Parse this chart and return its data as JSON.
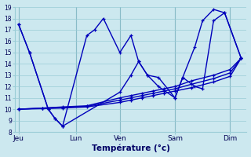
{
  "bg_color": "#cce8ef",
  "grid_color": "#99ccd6",
  "line_color": "#0000bb",
  "xlabel": "Température (°c)",
  "ylim": [
    8,
    19
  ],
  "xlim": [
    0,
    21
  ],
  "yticks": [
    8,
    9,
    10,
    11,
    12,
    13,
    14,
    15,
    16,
    17,
    18,
    19
  ],
  "day_labels": [
    "Jeu",
    "Lun",
    "Ven",
    "Sam",
    "Dim"
  ],
  "day_positions": [
    0.3,
    5.5,
    9.5,
    14.5,
    19.5
  ],
  "vline_positions": [
    0.3,
    5.5,
    9.5,
    14.5,
    19.5
  ],
  "line1_x": [
    0.3,
    1.3,
    3.0,
    3.6,
    4.3,
    6.5,
    7.2,
    8.0,
    9.5,
    10.5,
    11.2,
    12.0,
    13.0,
    14.5,
    15.2,
    16.3,
    17.0,
    18.0,
    19.0,
    20.5
  ],
  "line1_y": [
    17.5,
    15.0,
    10.0,
    9.2,
    8.5,
    16.5,
    17.0,
    18.0,
    15.0,
    16.5,
    14.2,
    13.0,
    12.8,
    11.0,
    12.8,
    15.5,
    17.8,
    18.8,
    18.5,
    14.5
  ],
  "line2_x": [
    0.3,
    1.3,
    3.0,
    3.6,
    4.3,
    9.5,
    10.5,
    11.2,
    12.0,
    13.0,
    14.5,
    15.2,
    16.3,
    17.0,
    18.0,
    19.0,
    20.5
  ],
  "line2_y": [
    17.5,
    15.0,
    10.0,
    9.2,
    8.5,
    11.5,
    13.0,
    14.2,
    13.0,
    12.0,
    11.0,
    12.8,
    12.0,
    11.8,
    17.8,
    18.5,
    14.5
  ],
  "line3_x": [
    0.3,
    2.5,
    4.3,
    6.5,
    9.5,
    10.5,
    11.5,
    12.5,
    13.5,
    14.5,
    16.0,
    18.0,
    19.5,
    20.5
  ],
  "line3_y": [
    10.0,
    10.1,
    10.2,
    10.3,
    11.0,
    11.2,
    11.4,
    11.6,
    11.8,
    12.0,
    12.5,
    13.0,
    13.5,
    14.5
  ],
  "line4_x": [
    0.3,
    2.5,
    4.3,
    6.5,
    9.5,
    10.5,
    11.5,
    12.5,
    13.5,
    14.5,
    16.0,
    18.0,
    19.5,
    20.5
  ],
  "line4_y": [
    10.0,
    10.1,
    10.15,
    10.25,
    10.8,
    11.0,
    11.2,
    11.4,
    11.6,
    11.8,
    12.2,
    12.7,
    13.2,
    14.5
  ],
  "line5_x": [
    0.3,
    2.5,
    4.3,
    6.5,
    9.5,
    10.5,
    11.5,
    12.5,
    13.5,
    14.5,
    16.0,
    18.0,
    19.5,
    20.5
  ],
  "line5_y": [
    10.0,
    10.05,
    10.1,
    10.2,
    10.6,
    10.8,
    11.0,
    11.2,
    11.4,
    11.6,
    11.9,
    12.4,
    12.9,
    14.5
  ]
}
